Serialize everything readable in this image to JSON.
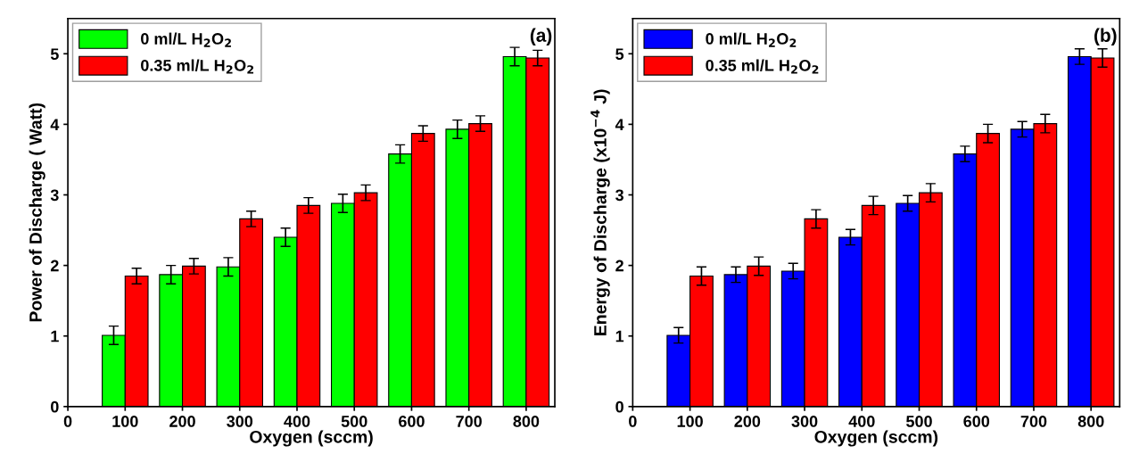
{
  "chart_data": [
    {
      "type": "bar",
      "xlabel": "Oxygen (sccm)",
      "ylabel": "Power of Discharge ( Watt)",
      "annotations": [
        "(a)"
      ],
      "legend": "top left",
      "grid": false,
      "xlim": [
        0,
        850
      ],
      "xticks": [
        0,
        100,
        200,
        300,
        400,
        500,
        600,
        700,
        800
      ],
      "ylim": [
        0,
        5.5
      ],
      "yticks": [
        0,
        1,
        2,
        3,
        4,
        5
      ],
      "series": [
        {
          "name": "0 ml/L H$_{2}$O$_{2}$",
          "color": "#00ff00",
          "x": [
            80,
            180,
            280,
            380,
            480,
            580,
            680,
            780
          ],
          "values": [
            1.01,
            1.87,
            1.98,
            2.4,
            2.88,
            3.58,
            3.93,
            4.96
          ],
          "errors": [
            0.13,
            0.13,
            0.13,
            0.13,
            0.13,
            0.13,
            0.13,
            0.13
          ]
        },
        {
          "name": "0.35 ml/L H$_{2}$O$_{2}$",
          "color": "#ff0000",
          "x": [
            120,
            220,
            320,
            420,
            520,
            620,
            720,
            820
          ],
          "values": [
            1.85,
            1.99,
            2.66,
            2.85,
            3.03,
            3.87,
            4.01,
            4.94
          ],
          "errors": [
            0.11,
            0.11,
            0.11,
            0.11,
            0.11,
            0.11,
            0.11,
            0.11
          ]
        }
      ]
    },
    {
      "type": "bar",
      "xlabel": "Oxygen (sccm)",
      "ylabel": "Energy of Discharge (x10$^{−4}$ J)",
      "annotations": [
        "(b)"
      ],
      "legend": "top left",
      "grid": false,
      "xlim": [
        0,
        850
      ],
      "xticks": [
        0,
        100,
        200,
        300,
        400,
        500,
        600,
        700,
        800
      ],
      "ylim": [
        0,
        5.5
      ],
      "yticks": [
        0,
        1,
        2,
        3,
        4,
        5
      ],
      "series": [
        {
          "name": "0 ml/L H$_{2}$O$_{2}$",
          "color": "#0000ff",
          "x": [
            80,
            180,
            280,
            380,
            480,
            580,
            680,
            780
          ],
          "values": [
            1.01,
            1.87,
            1.92,
            2.4,
            2.88,
            3.58,
            3.93,
            4.96
          ],
          "errors": [
            0.11,
            0.11,
            0.11,
            0.11,
            0.11,
            0.11,
            0.11,
            0.11
          ]
        },
        {
          "name": "0.35 ml/L H$_{2}$O$_{2}$",
          "color": "#ff0000",
          "x": [
            120,
            220,
            320,
            420,
            520,
            620,
            720,
            820
          ],
          "values": [
            1.85,
            1.99,
            2.66,
            2.85,
            3.03,
            3.87,
            4.01,
            4.94
          ],
          "errors": [
            0.13,
            0.13,
            0.13,
            0.13,
            0.13,
            0.13,
            0.13,
            0.13
          ]
        }
      ]
    }
  ]
}
